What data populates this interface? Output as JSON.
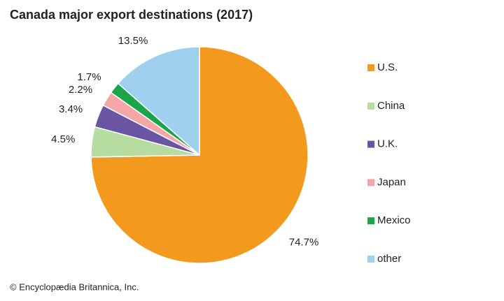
{
  "chart_data": {
    "type": "pie",
    "title": "Canada major export destinations (2017)",
    "categories": [
      "U.S.",
      "China",
      "U.K.",
      "Japan",
      "Mexico",
      "other"
    ],
    "values": [
      74.7,
      4.5,
      3.4,
      2.2,
      1.7,
      13.5
    ],
    "value_labels": [
      "74.7%",
      "4.5%",
      "3.4%",
      "2.2%",
      "1.7%",
      "13.5%"
    ],
    "colors": [
      "#f39a1e",
      "#b6dca0",
      "#6a55a4",
      "#f4a7a6",
      "#1aa54b",
      "#9fd1ee"
    ],
    "legend": "right"
  },
  "credit": "© Encyclopædia Britannica, Inc."
}
